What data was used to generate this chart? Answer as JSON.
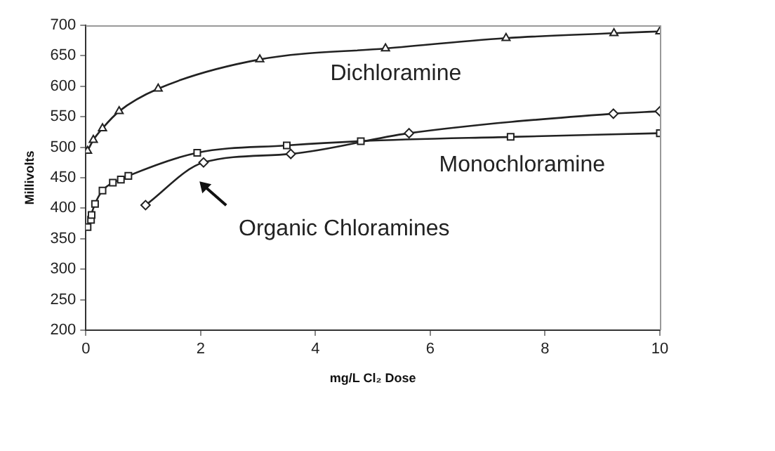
{
  "chart_data": {
    "type": "line",
    "xlabel": "mg/L Cl₂ Dose",
    "ylabel": "Millivolts",
    "xlim": [
      0,
      10
    ],
    "xticks": [
      0,
      2,
      4,
      6,
      8,
      10
    ],
    "ylim": [
      200,
      700
    ],
    "yticks": [
      200,
      250,
      300,
      350,
      400,
      450,
      500,
      550,
      600,
      650,
      700
    ],
    "grid": false,
    "legend": false,
    "line_style": "solid",
    "series": [
      {
        "name": "Dichloramine",
        "color": "#222222",
        "marker": "triangle",
        "x": [
          0.03,
          0.13,
          0.29,
          0.58,
          1.26,
          3.03,
          5.22,
          7.32,
          9.2,
          10
        ],
        "values": [
          494,
          512,
          531,
          559,
          596,
          644,
          662,
          679,
          687,
          690
        ]
      },
      {
        "name": "Monochloramine",
        "color": "#222222",
        "marker": "square",
        "x": [
          0.03,
          0.09,
          0.1,
          0.16,
          0.29,
          0.47,
          0.61,
          0.74,
          1.94,
          3.5,
          4.79,
          7.4,
          10
        ],
        "values": [
          369,
          381,
          389,
          407,
          429,
          442,
          447,
          453,
          491,
          503,
          510,
          517,
          523
        ]
      },
      {
        "name": "Organic Chloramines",
        "color": "#222222",
        "marker": "diamond",
        "x": [
          1.04,
          2.05,
          3.57,
          5.63,
          9.19,
          10
        ],
        "values": [
          405,
          475,
          489,
          523,
          555,
          559
        ]
      }
    ]
  }
}
